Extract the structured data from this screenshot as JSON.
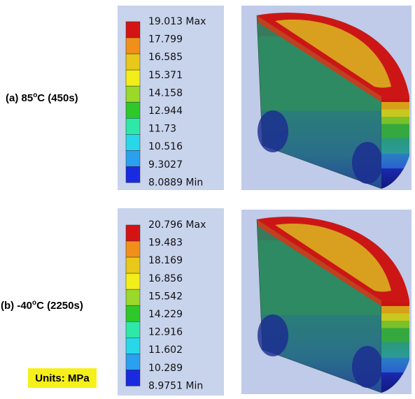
{
  "panels": [
    {
      "label": {
        "before": "(a) 85",
        "sup": "o",
        "after": "C (450s)"
      },
      "legend": [
        "19.013 Max",
        "17.799",
        "16.585",
        "15.371",
        "14.158",
        "12.944",
        "11.73",
        "10.516",
        "9.3027",
        "8.0889 Min"
      ]
    },
    {
      "label": {
        "before": "(b) -40",
        "sup": "o",
        "after": "C (2250s)"
      },
      "legend": [
        "20.796 Max",
        "19.483",
        "18.169",
        "16.856",
        "15.542",
        "14.229",
        "12.916",
        "11.602",
        "10.289",
        "8.9751 Min"
      ]
    }
  ],
  "legend_colors": [
    "#d41414",
    "#f0901a",
    "#e8c81a",
    "#f2ee1a",
    "#9ad82a",
    "#2ec82a",
    "#2ee8a8",
    "#28d8e8",
    "#2aa0ee",
    "#1a2ae0"
  ],
  "units": "Units: MPa"
}
